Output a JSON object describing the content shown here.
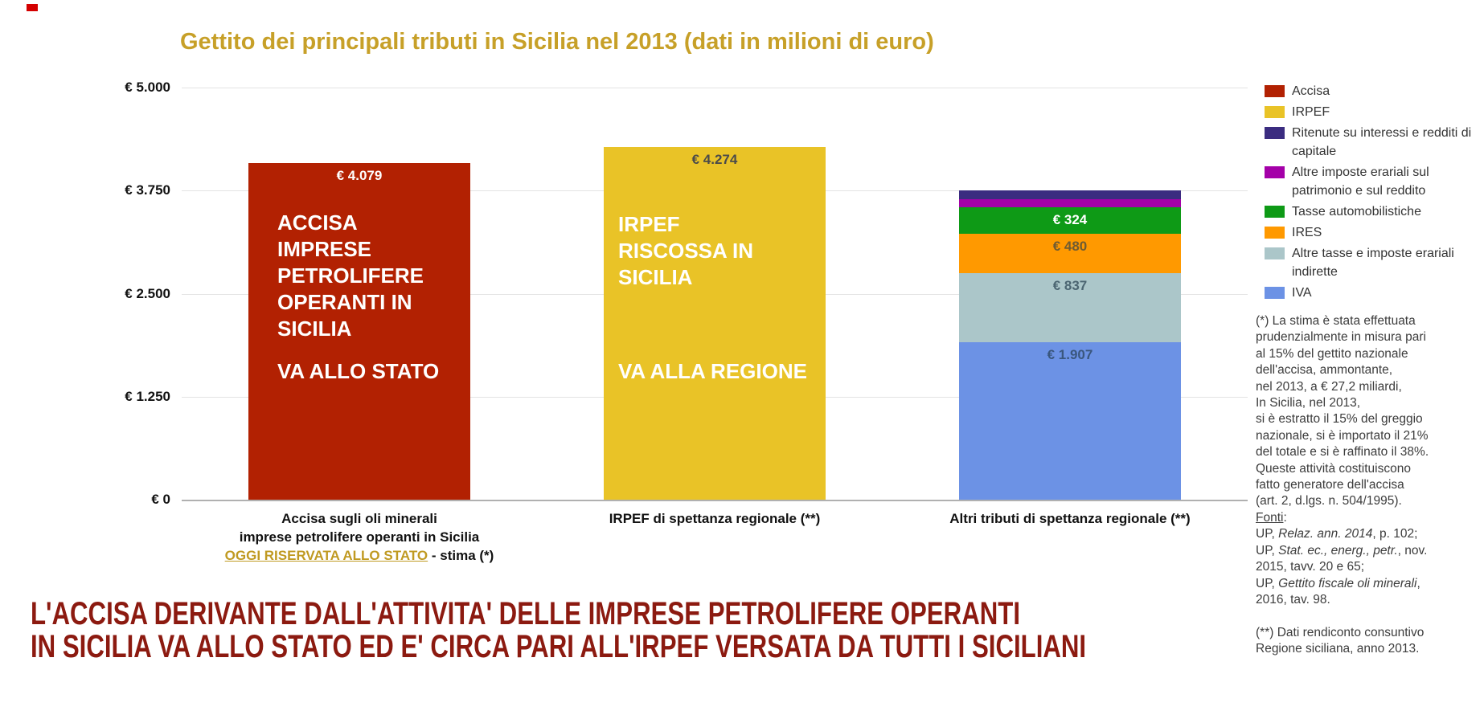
{
  "title": {
    "text": "Gettito dei principali tributi in Sicilia nel 2013 (dati in milioni di euro)",
    "color": "#c7a028"
  },
  "chart_data": {
    "type": "bar",
    "stacked": true,
    "unit": "milioni di euro",
    "ylim": [
      0,
      5000
    ],
    "grid": true,
    "legend_position": "right",
    "y_ticks": [
      {
        "label": "€ 5.000",
        "value": 5000
      },
      {
        "label": "€ 3.750",
        "value": 3750
      },
      {
        "label": "€ 2.500",
        "value": 2500
      },
      {
        "label": "€ 1.250",
        "value": 1250
      },
      {
        "label": "€ 0",
        "value": 0
      }
    ],
    "categories": [
      "Accisa sugli oli minerali imprese petrolifere operanti in Sicilia OGGI RISERVATA ALLO STATO - stima (*)",
      "IRPEF di spettanza regionale (**)",
      "Altri tributi di spettanza regionale (**)"
    ],
    "bars": [
      {
        "id": "accisa",
        "total": 4079,
        "segments": [
          {
            "series": "Accisa",
            "value": 4079,
            "label": "€ 4.079",
            "color": "#b22102",
            "label_color": "#ffffff"
          }
        ],
        "annotations": [
          {
            "id": "main",
            "lines": [
              "ACCISA",
              "IMPRESE",
              "PETROLIFERE",
              "OPERANTI IN",
              "SICILIA"
            ]
          },
          {
            "id": "footer",
            "lines": [
              "VA ALLO STATO"
            ]
          }
        ]
      },
      {
        "id": "irpef",
        "total": 4274,
        "segments": [
          {
            "series": "IRPEF",
            "value": 4274,
            "label": "€ 4.274",
            "color": "#e9c327",
            "label_color": "#4a4a4a"
          }
        ],
        "annotations": [
          {
            "id": "main",
            "lines": [
              "IRPEF",
              "RISCOSSA IN",
              "SICILIA"
            ]
          },
          {
            "id": "footer",
            "lines": [
              "VA ALLA REGIONE"
            ]
          }
        ]
      },
      {
        "id": "altri-tributi",
        "total": 3750,
        "segments": [
          {
            "series": "IVA",
            "value": 1907,
            "label": "€ 1.907",
            "color": "#6c92e5",
            "label_color": "#3a577e"
          },
          {
            "series": "Altre tasse e imposte erariali indirette",
            "value": 837,
            "label": "€ 837",
            "color": "#abc6c9",
            "label_color": "#4c6672"
          },
          {
            "series": "IRES",
            "value": 480,
            "label": "€ 480",
            "color": "#ff9900",
            "label_color": "#6e5b33"
          },
          {
            "series": "Tasse automobilistiche",
            "value": 324,
            "label": "€ 324",
            "color": "#0e9a16",
            "label_color": "#ffffff"
          },
          {
            "series": "Altre imposte erariali sul patrimonio e sul reddito",
            "value": 100,
            "label": "",
            "color": "#a400a8",
            "label_color": ""
          },
          {
            "series": "Ritenute su interessi e redditi di capitale",
            "value": 102,
            "label": "",
            "color": "#3b2c80",
            "label_color": ""
          }
        ],
        "annotations": []
      }
    ],
    "legend": [
      {
        "label": "Accisa",
        "color": "#b22102"
      },
      {
        "label": "IRPEF",
        "color": "#e9c327"
      },
      {
        "label": "Ritenute su interessi e redditi di capitale",
        "color": "#3b2c80"
      },
      {
        "label": "Altre imposte erariali sul patrimonio e sul reddito",
        "color": "#a400a8"
      },
      {
        "label": "Tasse automobilistiche",
        "color": "#0e9a16"
      },
      {
        "label": "IRES",
        "color": "#ff9900"
      },
      {
        "label": "Altre tasse e imposte erariali indirette",
        "color": "#abc6c9"
      },
      {
        "label": "IVA",
        "color": "#6c92e5"
      }
    ]
  },
  "x_axis_labels": [
    {
      "lines": [
        [
          {
            "t": "Accisa sugli oli minerali"
          }
        ],
        [
          {
            "t": "imprese petrolifere operanti in Sicilia"
          }
        ],
        [
          {
            "t": "OGGI RISERVATA ALLO STATO",
            "style": "gold-underline"
          },
          {
            "t": " - stima (*)"
          }
        ]
      ]
    },
    {
      "lines": [
        [
          {
            "t": "IRPEF di spettanza regionale (**)"
          }
        ]
      ]
    },
    {
      "lines": [
        [
          {
            "t": "Altri tributi di spettanza regionale (**)"
          }
        ]
      ]
    }
  ],
  "notes": {
    "lines": [
      [
        {
          "t": "(*) La stima è stata effettuata"
        }
      ],
      [
        {
          "t": "prudenzialmente in misura pari"
        }
      ],
      [
        {
          "t": "al 15% del gettito nazionale"
        }
      ],
      [
        {
          "t": "dell'accisa, ammontante,"
        }
      ],
      [
        {
          "t": "nel 2013, a € 27,2 miliardi,"
        }
      ],
      [
        {
          "t": "In Sicilia, nel 2013,"
        }
      ],
      [
        {
          "t": "si è estratto il 15% del greggio"
        }
      ],
      [
        {
          "t": "nazionale, si è importato il 21%"
        }
      ],
      [
        {
          "t": "del totale e si è raffinato il 38%."
        }
      ],
      [
        {
          "t": "Queste attività costituiscono"
        }
      ],
      [
        {
          "t": "fatto generatore dell'accisa"
        }
      ],
      [
        {
          "t": "(art. 2, d.lgs. n. 504/1995)."
        }
      ],
      [
        {
          "t": "Fonti",
          "u": true
        },
        {
          "t": ":"
        }
      ],
      [
        {
          "t": "UP, "
        },
        {
          "t": "Relaz. ann. 2014",
          "i": true
        },
        {
          "t": ", p. 102;"
        }
      ],
      [
        {
          "t": "UP, "
        },
        {
          "t": "Stat. ec., energ., petr.",
          "i": true
        },
        {
          "t": ", nov."
        }
      ],
      [
        {
          "t": "2015, tavv. 20 e 65;"
        }
      ],
      [
        {
          "t": "UP, "
        },
        {
          "t": "Gettito fiscale oli minerali",
          "i": true
        },
        {
          "t": ","
        }
      ],
      [
        {
          "t": "2016, tav. 98."
        }
      ],
      [
        {
          "t": ""
        }
      ],
      [
        {
          "t": "(**) Dati rendiconto consuntivo"
        }
      ],
      [
        {
          "t": "Regione siciliana, anno 2013."
        }
      ]
    ]
  },
  "headline": {
    "color": "#8c1a10",
    "lines": [
      "L'ACCISA DERIVANTE DALL'ATTIVITA' DELLE IMPRESE PETROLIFERE OPERANTI",
      "IN SICILIA VA ALLO STATO ED E' CIRCA PARI ALL'IRPEF VERSATA DA TUTTI I SICILIANI"
    ]
  }
}
